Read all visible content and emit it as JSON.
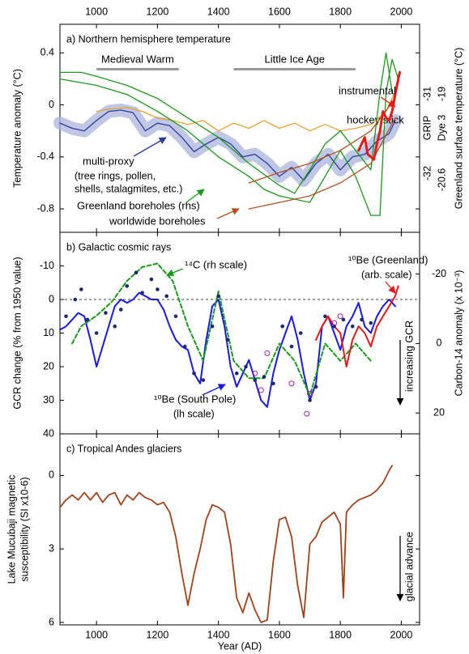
{
  "chart_data": [
    {
      "type": "line",
      "title": "a) Northern hemisphere temperature",
      "ylabel": "Temperature anomaly (°C)",
      "y2label": "Greenland surface temperature (°C)",
      "xlim": [
        880,
        2060
      ],
      "xticks": [
        1000,
        1200,
        1400,
        1600,
        1800,
        2000
      ],
      "xtick_labels": "top",
      "ylim": [
        -0.98,
        0.62
      ],
      "yticks": [
        0.4,
        0,
        -0.4,
        -0.8
      ],
      "periods": [
        {
          "label": "Medieval Warm",
          "start": 1000,
          "end": 1270,
          "color": "#999999"
        },
        {
          "label": "Little Ice Age",
          "start": 1450,
          "end": 1850,
          "color": "#999999"
        }
      ],
      "series": [
        {
          "name": "multi-proxy",
          "color": "#2b3a9c",
          "band": true,
          "x": [
            880,
            920,
            960,
            1000,
            1040,
            1080,
            1120,
            1160,
            1200,
            1240,
            1280,
            1320,
            1360,
            1400,
            1440,
            1480,
            1520,
            1560,
            1600,
            1640,
            1680,
            1720,
            1760,
            1800,
            1840,
            1880,
            1920,
            1960,
            1980
          ],
          "values": [
            -0.14,
            -0.18,
            -0.2,
            -0.12,
            -0.05,
            -0.04,
            -0.06,
            -0.2,
            -0.14,
            -0.16,
            -0.25,
            -0.36,
            -0.3,
            -0.25,
            -0.3,
            -0.4,
            -0.38,
            -0.45,
            -0.55,
            -0.48,
            -0.58,
            -0.45,
            -0.38,
            -0.5,
            -0.4,
            -0.38,
            -0.28,
            -0.22,
            -0.12
          ]
        },
        {
          "name": "hockey stick",
          "color": "#e8a030",
          "x": [
            1000,
            1050,
            1100,
            1150,
            1200,
            1250,
            1300,
            1350,
            1400,
            1450,
            1500,
            1550,
            1600,
            1650,
            1700,
            1750,
            1800,
            1850,
            1900,
            1950,
            1980
          ],
          "values": [
            -0.05,
            -0.03,
            -0.02,
            -0.05,
            -0.1,
            -0.12,
            -0.15,
            -0.12,
            -0.2,
            -0.14,
            -0.18,
            -0.12,
            -0.18,
            -0.14,
            -0.2,
            -0.15,
            -0.2,
            -0.18,
            -0.15,
            -0.05,
            0.1
          ]
        },
        {
          "name": "Greenland boreholes (rhs)",
          "color": "#1a9a1a",
          "x": [
            880,
            950,
            1000,
            1100,
            1200,
            1300,
            1400,
            1500,
            1600,
            1650,
            1700,
            1750,
            1800,
            1850,
            1900,
            1930,
            1950,
            1970
          ],
          "values": [
            0.25,
            0.25,
            0.22,
            0.15,
            0.05,
            -0.1,
            -0.25,
            -0.45,
            -0.62,
            -0.68,
            -0.5,
            -0.3,
            -0.2,
            -0.35,
            -0.5,
            0.1,
            0.4,
            0.1
          ]
        },
        {
          "color": "#1a9a1a",
          "x": [
            880,
            1000,
            1100,
            1200,
            1300,
            1350,
            1400,
            1500,
            1550,
            1600,
            1700,
            1750,
            1800,
            1850,
            1900,
            1930,
            1950,
            1970,
            1990
          ],
          "values": [
            0.2,
            0.15,
            0.08,
            -0.05,
            -0.2,
            -0.3,
            -0.4,
            -0.55,
            -0.65,
            -0.7,
            -0.75,
            -0.55,
            -0.35,
            -0.55,
            -0.85,
            -0.85,
            0.1,
            0.35,
            0.2
          ]
        },
        {
          "name": "worldwide boreholes",
          "color": "#b5521e",
          "x": [
            1500,
            1600,
            1700,
            1800,
            1900,
            1980
          ],
          "values": [
            -0.6,
            -0.52,
            -0.45,
            -0.35,
            -0.2,
            0.05
          ]
        },
        {
          "color": "#b5521e",
          "x": [
            1500,
            1600,
            1700,
            1800,
            1900,
            1980
          ],
          "values": [
            -0.8,
            -0.75,
            -0.7,
            -0.6,
            -0.45,
            -0.1
          ]
        },
        {
          "name": "instrumental",
          "color": "#e81818",
          "width": 3,
          "x": [
            1860,
            1870,
            1880,
            1890,
            1900,
            1910,
            1920,
            1930,
            1940,
            1950,
            1960,
            1970,
            1980,
            1990,
            1995
          ],
          "values": [
            -0.35,
            -0.3,
            -0.25,
            -0.38,
            -0.4,
            -0.42,
            -0.3,
            -0.2,
            -0.05,
            -0.1,
            -0.12,
            -0.05,
            0.08,
            0.2,
            0.25
          ]
        }
      ],
      "annotations": [
        {
          "text": "(tree rings, pollen,",
          "color": "#2b3a9c"
        },
        {
          "text": "shells, stalagmites, etc.)",
          "color": "#2b3a9c"
        },
        {
          "text": "GRIP",
          "color": "#000000"
        },
        {
          "text": "Dye 3",
          "color": "#000000"
        },
        {
          "text": "-31",
          "color": "#000000"
        },
        {
          "text": "-19",
          "color": "#000000"
        },
        {
          "text": "-32",
          "color": "#000000"
        },
        {
          "text": "-20.6",
          "color": "#000000"
        }
      ]
    },
    {
      "type": "line",
      "title": "b) Galactic cosmic rays",
      "ylabel": "GCR change (% from 1950 value)",
      "y2label": "Carbon-14 anomaly (x 10⁻³)",
      "xlim": [
        880,
        2060
      ],
      "xticks": [
        1000,
        1200,
        1400,
        1600,
        1800,
        2000
      ],
      "xtick_labels": "none",
      "ylim": [
        -20,
        40
      ],
      "y_inverted": true,
      "yticks": [
        -10,
        0,
        10,
        20,
        30,
        40
      ],
      "y2lim": [
        -32,
        26
      ],
      "y2_inverted": true,
      "y2ticks": [
        -20,
        0,
        20
      ],
      "reference_line": 0,
      "series": [
        {
          "name": "¹⁰Be (South Pole)",
          "color": "#1a1ae0",
          "width": 2,
          "x": [
            880,
            900,
            920,
            940,
            960,
            980,
            1000,
            1020,
            1040,
            1060,
            1080,
            1100,
            1120,
            1140,
            1160,
            1180,
            1200,
            1220,
            1240,
            1260,
            1280,
            1300,
            1320,
            1340,
            1360,
            1380,
            1400,
            1420,
            1440,
            1460,
            1480,
            1500,
            1520,
            1540,
            1560,
            1580,
            1600,
            1620,
            1640,
            1660,
            1680,
            1700,
            1720,
            1740,
            1760,
            1780,
            1800,
            1820,
            1840,
            1860,
            1880,
            1900,
            1920,
            1940,
            1960,
            1980
          ],
          "values": [
            9,
            8,
            6,
            4,
            5,
            12,
            20,
            14,
            8,
            2,
            0,
            1,
            0,
            -2,
            -1,
            0,
            0,
            3,
            8,
            12,
            14,
            15,
            22,
            25,
            12,
            2,
            0,
            8,
            20,
            26,
            22,
            18,
            24,
            30,
            32,
            22,
            15,
            10,
            5,
            12,
            22,
            30,
            25,
            8,
            5,
            10,
            15,
            8,
            5,
            1,
            8,
            10,
            5,
            2,
            0,
            2
          ]
        },
        {
          "name": "¹⁴C (rh scale)",
          "color": "#1a9a1a",
          "dash": true,
          "width": 2,
          "axis": "y2",
          "x": [
            920,
            950,
            1000,
            1050,
            1100,
            1150,
            1200,
            1250,
            1300,
            1350,
            1400,
            1450,
            1500,
            1550,
            1600,
            1650,
            1700,
            1750,
            1800,
            1850,
            1900
          ],
          "values": [
            0,
            -5,
            -8,
            -12,
            -18,
            -22,
            -23,
            -18,
            -5,
            5,
            -15,
            5,
            10,
            10,
            0,
            5,
            15,
            0,
            5,
            0,
            5
          ]
        },
        {
          "name": "¹⁰Be (Greenland)",
          "color": "#e81818",
          "width": 2,
          "x": [
            1720,
            1740,
            1760,
            1780,
            1800,
            1820,
            1840,
            1860,
            1880,
            1900,
            1920,
            1940,
            1960,
            1980,
            1990
          ],
          "values": [
            12,
            8,
            5,
            8,
            10,
            20,
            12,
            8,
            10,
            14,
            8,
            5,
            2,
            -1,
            -4
          ]
        },
        {
          "color": "#1a2a70",
          "marker": "dot",
          "x": [
            900,
            930,
            950,
            970,
            1000,
            1030,
            1060,
            1080,
            1100,
            1130,
            1150,
            1180,
            1200,
            1230,
            1260,
            1290,
            1320,
            1350,
            1380,
            1400,
            1430,
            1460,
            1490,
            1520,
            1550,
            1580,
            1610,
            1640,
            1670,
            1700,
            1720,
            1750,
            1780,
            1810,
            1840,
            1870,
            1900
          ],
          "values": [
            5,
            0,
            -3,
            6,
            10,
            4,
            8,
            3,
            -4,
            -8,
            -2,
            -6,
            -3,
            -1,
            5,
            14,
            22,
            24,
            8,
            -1,
            12,
            22,
            20,
            24,
            23,
            25,
            8,
            14,
            10,
            30,
            26,
            5,
            8,
            6,
            8,
            6,
            7
          ]
        },
        {
          "color": "#a020a0",
          "marker": "circle",
          "x": [
            1520,
            1540,
            1560,
            1640,
            1690,
            1700,
            1780,
            1800
          ],
          "values": [
            22,
            27,
            16,
            25,
            34,
            28,
            7,
            5
          ]
        }
      ],
      "annotations": [
        {
          "text": "(arb. scale)",
          "color": "#e81818"
        },
        {
          "text": "(lh scale)",
          "color": "#1a1ae0"
        },
        {
          "text": "increasing GCR",
          "color": "#000000"
        }
      ]
    },
    {
      "type": "line",
      "title": "c) Tropical Andes glaciers",
      "ylabel": [
        "Lake Mucubaji magnetic",
        "susceptibility (SI x10-6)"
      ],
      "xlabel": "Year (AD)",
      "xlim": [
        880,
        2060
      ],
      "xticks": [
        1000,
        1200,
        1400,
        1600,
        1800,
        2000
      ],
      "xtick_labels": "bottom",
      "ylim": [
        -1.7,
        6.1
      ],
      "y_inverted": true,
      "yticks": [
        0,
        3,
        6
      ],
      "series": [
        {
          "color": "#a0421a",
          "width": 1.8,
          "x": [
            880,
            900,
            920,
            940,
            960,
            980,
            1000,
            1020,
            1040,
            1060,
            1080,
            1100,
            1120,
            1140,
            1160,
            1180,
            1200,
            1220,
            1240,
            1260,
            1280,
            1300,
            1320,
            1340,
            1360,
            1380,
            1400,
            1420,
            1440,
            1460,
            1480,
            1500,
            1520,
            1540,
            1560,
            1580,
            1600,
            1620,
            1640,
            1660,
            1680,
            1700,
            1720,
            1740,
            1760,
            1780,
            1800,
            1810,
            1820,
            1840,
            1860,
            1880,
            1900,
            1920,
            1940,
            1960,
            1970
          ],
          "values": [
            1.3,
            1.0,
            0.8,
            1.0,
            0.7,
            1.0,
            0.7,
            1.1,
            0.8,
            0.7,
            1.2,
            0.8,
            1.0,
            0.7,
            0.9,
            1.0,
            1.2,
            1.1,
            1.5,
            2.5,
            4.0,
            5.3,
            4.0,
            3.0,
            1.8,
            1.2,
            1.3,
            1.5,
            2.8,
            5.0,
            5.6,
            4.8,
            5.5,
            6.0,
            5.9,
            3.5,
            1.8,
            1.7,
            2.5,
            4.5,
            5.8,
            2.8,
            2.5,
            1.9,
            1.7,
            1.5,
            2.0,
            5.0,
            1.5,
            1.2,
            1.0,
            0.9,
            0.8,
            0.6,
            0.3,
            -0.2,
            -0.4
          ]
        }
      ],
      "annotations": [
        {
          "text": "glacial advance",
          "color": "#000000"
        }
      ]
    }
  ]
}
